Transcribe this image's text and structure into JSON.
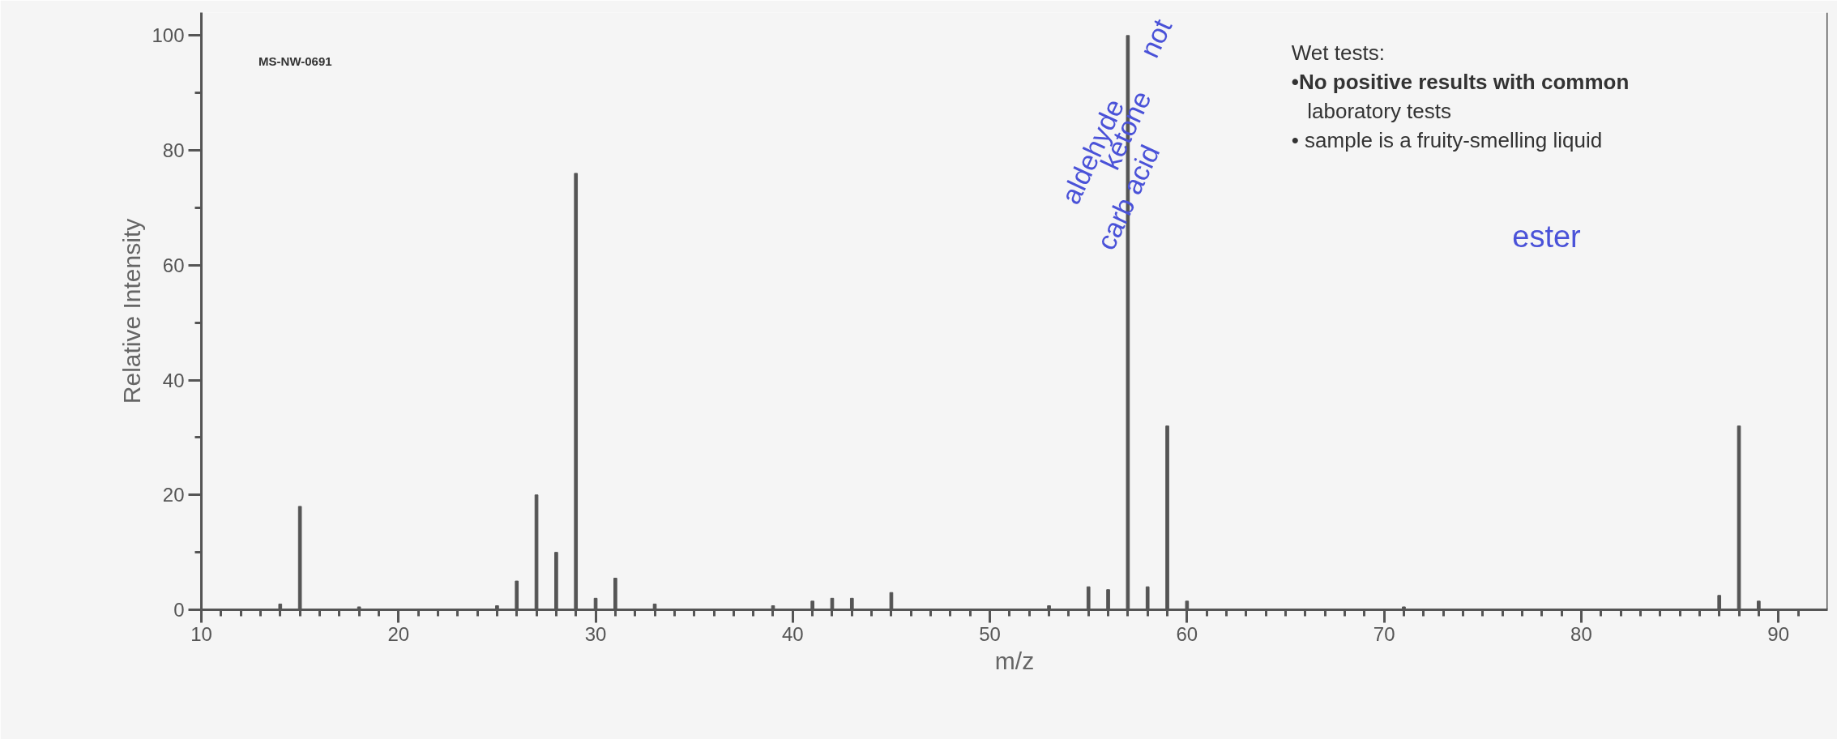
{
  "chart_data": {
    "type": "bar",
    "xlabel": "m/z",
    "ylabel": "Relative Intensity",
    "color": "#555555",
    "x": [
      14,
      15,
      18,
      25,
      26,
      27,
      28,
      29,
      30,
      31,
      33,
      39,
      41,
      42,
      43,
      45,
      53,
      55,
      56,
      57,
      58,
      59,
      60,
      71,
      87,
      88,
      89
    ],
    "values": [
      1,
      18,
      0.5,
      0.7,
      5,
      20,
      10,
      76,
      2,
      5.5,
      1,
      0.7,
      1.5,
      2,
      2,
      3,
      0.7,
      4,
      3.5,
      100,
      4,
      32,
      1.5,
      0.5,
      2.5,
      32,
      1.5
    ],
    "xlim": [
      10,
      92.5
    ],
    "ylim": [
      0,
      104
    ],
    "xticks": [
      10,
      {
        "value": 11,
        "label": null
      },
      {
        "value": 12,
        "label": null
      },
      {
        "value": 13,
        "label": null
      },
      {
        "value": 14,
        "label": null
      },
      {
        "value": 15,
        "label": null
      },
      {
        "value": 16,
        "label": null
      },
      {
        "value": 17,
        "label": null
      },
      {
        "value": 18,
        "label": null
      },
      {
        "value": 19,
        "label": null
      },
      20,
      {
        "value": 21,
        "label": null
      },
      {
        "value": 22,
        "label": null
      },
      {
        "value": 23,
        "label": null
      },
      {
        "value": 24,
        "label": null
      },
      {
        "value": 25,
        "label": null
      },
      {
        "value": 26,
        "label": null
      },
      {
        "value": 27,
        "label": null
      },
      {
        "value": 28,
        "label": null
      },
      {
        "value": 29,
        "label": null
      },
      30,
      {
        "value": 31,
        "label": null
      },
      {
        "value": 32,
        "label": null
      },
      {
        "value": 33,
        "label": null
      },
      {
        "value": 34,
        "label": null
      },
      {
        "value": 35,
        "label": null
      },
      {
        "value": 36,
        "label": null
      },
      {
        "value": 37,
        "label": null
      },
      {
        "value": 38,
        "label": null
      },
      {
        "value": 39,
        "label": null
      },
      40,
      {
        "value": 41,
        "label": null
      },
      {
        "value": 42,
        "label": null
      },
      {
        "value": 43,
        "label": null
      },
      {
        "value": 44,
        "label": null
      },
      {
        "value": 45,
        "label": null
      },
      {
        "value": 46,
        "label": null
      },
      {
        "value": 47,
        "label": null
      },
      {
        "value": 48,
        "label": null
      },
      {
        "value": 49,
        "label": null
      },
      50,
      {
        "value": 51,
        "label": null
      },
      {
        "value": 52,
        "label": null
      },
      {
        "value": 53,
        "label": null
      },
      {
        "value": 54,
        "label": null
      },
      {
        "value": 55,
        "label": null
      },
      {
        "value": 56,
        "label": null
      },
      {
        "value": 57,
        "label": null
      },
      {
        "value": 58,
        "label": null
      },
      {
        "value": 59,
        "label": null
      },
      60,
      {
        "value": 61,
        "label": null
      },
      {
        "value": 62,
        "label": null
      },
      {
        "value": 63,
        "label": null
      },
      {
        "value": 64,
        "label": null
      },
      {
        "value": 65,
        "label": null
      },
      {
        "value": 66,
        "label": null
      },
      {
        "value": 67,
        "label": null
      },
      {
        "value": 68,
        "label": null
      },
      {
        "value": 69,
        "label": null
      },
      70,
      {
        "value": 71,
        "label": null
      },
      {
        "value": 72,
        "label": null
      },
      {
        "value": 73,
        "label": null
      },
      {
        "value": 74,
        "label": null
      },
      {
        "value": 75,
        "label": null
      },
      {
        "value": 76,
        "label": null
      },
      {
        "value": 77,
        "label": null
      },
      {
        "value": 78,
        "label": null
      },
      {
        "value": 79,
        "label": null
      },
      80,
      {
        "value": 81,
        "label": null
      },
      {
        "value": 82,
        "label": null
      },
      {
        "value": 83,
        "label": null
      },
      {
        "value": 84,
        "label": null
      },
      {
        "value": 85,
        "label": null
      },
      {
        "value": 86,
        "label": null
      },
      {
        "value": 87,
        "label": null
      },
      {
        "value": 88,
        "label": null
      },
      {
        "value": 89,
        "label": null
      },
      90,
      {
        "value": 91,
        "label": null
      }
    ],
    "yticks": [
      0,
      {
        "value": 10,
        "label": null
      },
      20,
      {
        "value": 30,
        "label": null
      },
      40,
      {
        "value": 50,
        "label": null
      },
      60,
      {
        "value": 70,
        "label": null
      },
      80,
      {
        "value": 90,
        "label": null
      },
      100
    ],
    "annotations": [
      "MS-NW-0691",
      "Wet tests:",
      "•No positive results with common",
      "laboratory tests",
      "• sample is a fruity-smelling liquid",
      "not",
      "aldehyde",
      "ketone",
      "carb acid",
      "ester"
    ]
  }
}
